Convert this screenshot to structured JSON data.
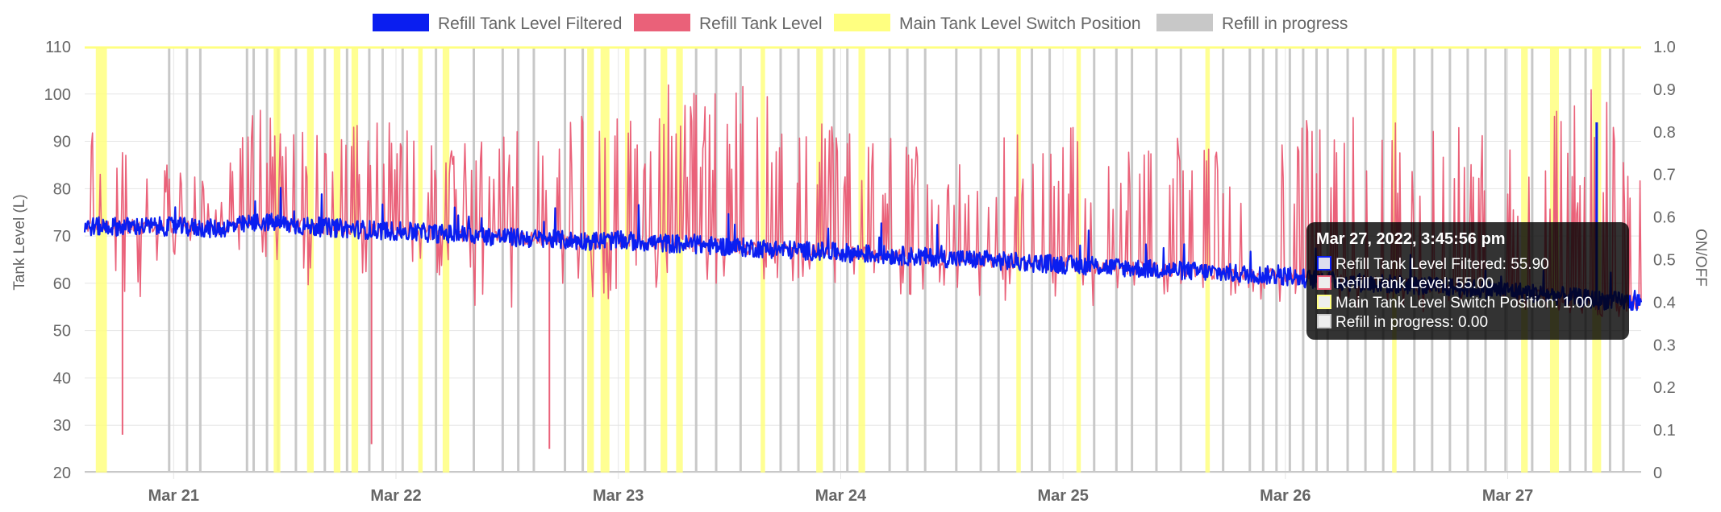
{
  "chart_data": {
    "type": "line",
    "xlabel": "",
    "ylabel": "Tank Level (L)",
    "y2label": "ON/OFF",
    "ylim": [
      20,
      110
    ],
    "y2lim": [
      0,
      1
    ],
    "y_ticks": [
      "110",
      "100",
      "90",
      "80",
      "70",
      "60",
      "50",
      "40",
      "30",
      "20"
    ],
    "y2_ticks": [
      "1.0",
      "0.9",
      "0.8",
      "0.7",
      "0.6",
      "0.5",
      "0.4",
      "0.3",
      "0.2",
      "0.1",
      "0"
    ],
    "x_ticks": [
      "Mar 21",
      "Mar 22",
      "Mar 23",
      "Mar 24",
      "Mar 25",
      "Mar 26",
      "Mar 27"
    ],
    "x_range_days": [
      20.6,
      27.6
    ],
    "grid": true,
    "legend_position": "top",
    "series": [
      {
        "name": "Refill Tank Level Filtered",
        "axis": "left",
        "color": "#0a1ef0",
        "x": [
          20.6,
          20.8,
          21.0,
          21.2,
          21.4,
          21.6,
          21.8,
          22.0,
          22.2,
          22.4,
          22.6,
          22.8,
          23.0,
          23.2,
          23.4,
          23.6,
          23.8,
          24.0,
          24.2,
          24.4,
          24.6,
          24.8,
          25.0,
          25.2,
          25.4,
          25.6,
          25.8,
          26.0,
          26.2,
          26.4,
          26.6,
          26.8,
          27.0,
          27.2,
          27.4,
          27.6
        ],
        "values": [
          72,
          72,
          72,
          71.5,
          73,
          72,
          71.5,
          71,
          70.5,
          70,
          69.5,
          69,
          69,
          68.5,
          68,
          67.5,
          67,
          66.5,
          66,
          65.5,
          65,
          64.5,
          64,
          63.5,
          63,
          62.5,
          62,
          61.5,
          60.5,
          60,
          59.5,
          59,
          58.5,
          57.5,
          56.5,
          56
        ]
      },
      {
        "name": "Refill Tank Level",
        "axis": "left",
        "color": "#ea6179",
        "x": [
          20.6,
          20.8,
          21.0,
          21.2,
          21.4,
          21.6,
          21.8,
          22.0,
          22.2,
          22.4,
          22.6,
          22.8,
          23.0,
          23.2,
          23.4,
          23.6,
          23.8,
          24.0,
          24.2,
          24.4,
          24.6,
          24.8,
          25.0,
          25.2,
          25.4,
          25.6,
          25.8,
          26.0,
          26.2,
          26.4,
          26.6,
          26.8,
          27.0,
          27.2,
          27.4,
          27.6
        ],
        "values": [
          72,
          72,
          72,
          71.5,
          73,
          72,
          71.5,
          71,
          70.5,
          70,
          69.5,
          69,
          69,
          68.5,
          68,
          67.5,
          67,
          66.5,
          66,
          65.5,
          65,
          64.5,
          64,
          63.5,
          63,
          62.5,
          62,
          61.5,
          60.5,
          60,
          59.5,
          59,
          58.5,
          57.5,
          56.5,
          56
        ],
        "upper_envelope": [
          95,
          93,
          86,
          80,
          100,
          98,
          95,
          94,
          91,
          95,
          93,
          95,
          103,
          104,
          100,
          102,
          95,
          95,
          93,
          90,
          90,
          96,
          96,
          94,
          92,
          90,
          86,
          95,
          97,
          95,
          96,
          93,
          90,
          97,
          103,
          96
        ],
        "lower_envelope": [
          54,
          52,
          65,
          66,
          60,
          59,
          55,
          56,
          59,
          53,
          50,
          55,
          57,
          59,
          60,
          60,
          60,
          59,
          58,
          57,
          57,
          56,
          55,
          55,
          56,
          57,
          57,
          56,
          55,
          54,
          54,
          53,
          54,
          54,
          53,
          52
        ],
        "min_spikes": [
          {
            "x": 20.77,
            "y": 28
          },
          {
            "x": 21.89,
            "y": 26
          },
          {
            "x": 22.69,
            "y": 25
          }
        ]
      },
      {
        "name": "Main Tank Level Switch Position",
        "axis": "right",
        "color": "#ffff80",
        "on_intervals": [
          [
            20.65,
            20.7
          ],
          [
            21.45,
            21.48
          ],
          [
            21.6,
            21.63
          ],
          [
            21.72,
            21.75
          ],
          [
            21.8,
            21.83
          ],
          [
            22.1,
            22.12
          ],
          [
            22.21,
            22.24
          ],
          [
            22.86,
            22.89
          ],
          [
            22.92,
            22.96
          ],
          [
            23.03,
            23.05
          ],
          [
            23.19,
            23.22
          ],
          [
            23.26,
            23.29
          ],
          [
            23.64,
            23.66
          ],
          [
            23.89,
            23.92
          ],
          [
            24.08,
            24.11
          ],
          [
            24.79,
            24.81
          ],
          [
            25.06,
            25.08
          ],
          [
            25.64,
            25.66
          ],
          [
            26.48,
            26.5
          ],
          [
            27.06,
            27.09
          ],
          [
            27.19,
            27.23
          ],
          [
            27.38,
            27.42
          ]
        ],
        "values": [
          1,
          0
        ]
      },
      {
        "name": "Refill in progress",
        "axis": "right",
        "color": "#c8c8c8",
        "pulses_x": [
          20.98,
          21.06,
          21.12,
          21.33,
          21.36,
          21.42,
          21.47,
          21.55,
          21.68,
          21.78,
          21.88,
          21.94,
          22.03,
          22.18,
          22.35,
          22.48,
          22.55,
          22.62,
          22.76,
          22.84,
          23.12,
          23.35,
          23.44,
          23.55,
          23.73,
          23.81,
          23.97,
          24.03,
          24.22,
          24.3,
          24.38,
          24.52,
          24.63,
          24.71,
          24.86,
          24.94,
          25.14,
          25.24,
          25.31,
          25.42,
          25.53,
          25.72,
          25.84,
          25.9,
          25.96,
          26.02,
          26.08,
          26.14,
          26.19,
          26.28,
          26.36,
          26.44,
          26.58,
          26.66,
          26.74,
          26.82,
          26.9,
          26.99,
          27.11,
          27.28,
          27.35,
          27.46,
          27.52
        ],
        "values": [
          1,
          0
        ]
      }
    ],
    "tooltip": {
      "title": "Mar 27, 2022, 3:45:56 pm",
      "lines": [
        "Refill Tank Level Filtered: 55.90",
        "Refill Tank Level: 55.00",
        "Main Tank Level Switch Position: 1.00",
        "Refill in progress: 0.00"
      ],
      "anchor_x": 27.65,
      "anchor_y": 55.9
    }
  },
  "legend": {
    "items": [
      {
        "label": "Refill Tank Level Filtered",
        "color": "#0a1ef0"
      },
      {
        "label": "Refill Tank Level",
        "color": "#ea6179"
      },
      {
        "label": "Main Tank Level Switch Position",
        "color": "#ffff80"
      },
      {
        "label": "Refill in progress",
        "color": "#c8c8c8"
      }
    ]
  },
  "colors": {
    "grid": "#e5e5e5",
    "axis_text": "#666666",
    "tooltip_bg": "#000000"
  }
}
